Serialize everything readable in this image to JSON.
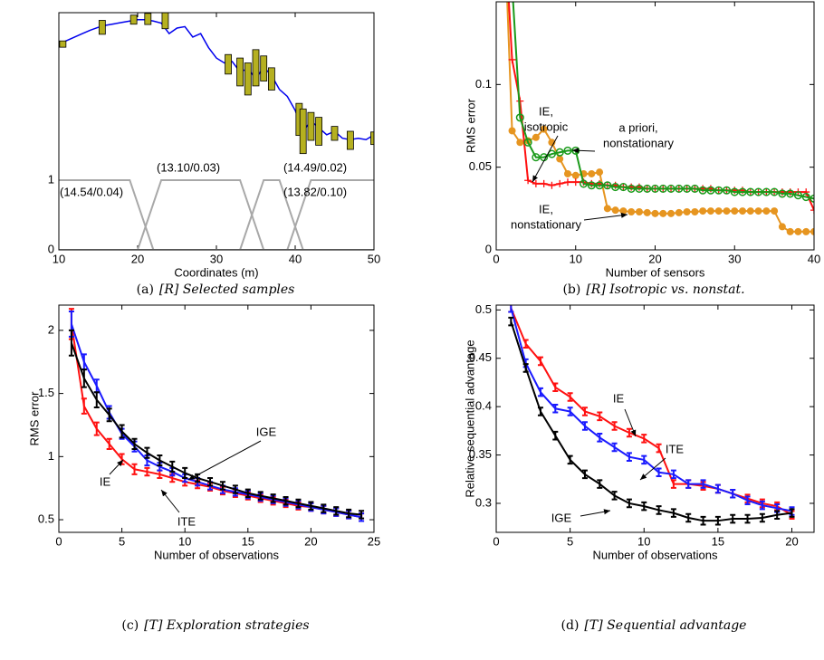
{
  "chart_data": [
    {
      "type": "line",
      "xlabel": "Coordinates (m)",
      "xlim": [
        10,
        50
      ],
      "xticks": [
        10,
        20,
        30,
        40,
        50
      ],
      "ylim": [
        0,
        3.4
      ],
      "yticks": [
        0,
        1
      ],
      "caption": {
        "label": "(a)",
        "text": "[R] Selected samples"
      },
      "annotations": [
        [
          "(14.54/0.04)"
        ],
        [
          "(13.10/0.03)"
        ],
        [
          "(13.82/0.10)"
        ],
        [
          "(14.49/0.02)"
        ]
      ],
      "series": [
        {
          "color": "#a8a8a8",
          "marker": "none",
          "x": [
            10,
            19,
            22,
            50
          ],
          "values": [
            1,
            1,
            0,
            0
          ]
        },
        {
          "color": "#a8a8a8",
          "marker": "none",
          "x": [
            10,
            20,
            23,
            33,
            36,
            50
          ],
          "values": [
            0,
            0,
            1,
            1,
            0,
            0
          ]
        },
        {
          "color": "#a8a8a8",
          "marker": "none",
          "x": [
            10,
            33,
            36,
            38,
            41,
            50
          ],
          "values": [
            0,
            0,
            1,
            1,
            0,
            0
          ]
        },
        {
          "color": "#a8a8a8",
          "marker": "none",
          "x": [
            10,
            39,
            42,
            50
          ],
          "values": [
            0,
            0,
            1,
            1
          ]
        },
        {
          "color": "#0000ee",
          "marker": "none",
          "x": [
            10,
            11,
            12,
            13,
            14,
            15,
            16,
            17,
            18,
            19,
            20,
            21,
            22,
            23,
            24,
            25,
            26,
            27,
            28,
            29,
            30,
            31,
            32,
            33,
            34,
            35,
            36,
            37,
            38,
            39,
            40,
            41,
            42,
            43,
            44,
            45,
            46,
            47,
            48,
            49,
            50
          ],
          "values": [
            2.95,
            3.0,
            3.05,
            3.1,
            3.15,
            3.19,
            3.22,
            3.24,
            3.26,
            3.28,
            3.3,
            3.3,
            3.28,
            3.25,
            3.1,
            3.18,
            3.2,
            3.05,
            3.1,
            2.9,
            2.75,
            2.68,
            2.7,
            2.55,
            2.6,
            2.45,
            2.62,
            2.5,
            2.3,
            2.2,
            2.0,
            1.7,
            1.85,
            1.75,
            1.65,
            1.7,
            1.6,
            1.58,
            1.6,
            1.58,
            1.65
          ]
        },
        {
          "color": "#b5b020",
          "marker": "box",
          "x": [
            10.5,
            15.5,
            19.5,
            21.3,
            23.5,
            31.5,
            33,
            34,
            35,
            36,
            37,
            40.5,
            41,
            42,
            43,
            45,
            47,
            50
          ],
          "values": [
            2.95,
            3.19,
            3.3,
            3.31,
            3.29,
            2.66,
            2.55,
            2.45,
            2.61,
            2.6,
            2.45,
            1.87,
            1.7,
            1.77,
            1.7,
            1.67,
            1.57,
            1.6
          ],
          "errors": [
            0.045,
            0.1,
            0.065,
            0.08,
            0.12,
            0.14,
            0.2,
            0.23,
            0.26,
            0.18,
            0.16,
            0.23,
            0.32,
            0.2,
            0.2,
            0.1,
            0.13,
            0.09
          ]
        }
      ]
    },
    {
      "type": "line",
      "xlabel": "Number of sensors",
      "ylabel": "RMS error",
      "xlim": [
        0,
        40
      ],
      "xticks": [
        0,
        10,
        20,
        30,
        40
      ],
      "ylim": [
        0,
        0.15
      ],
      "yticks": [
        0,
        0.05,
        0.1
      ],
      "caption": {
        "label": "(b)",
        "text": "[R] Isotropic vs. nonstat."
      },
      "annotations": [
        [
          "IE,",
          "isotropic"
        ],
        [
          "a priori,",
          "nonstationary"
        ],
        [
          "IE,",
          "nonstationary"
        ]
      ],
      "x": [
        1,
        2,
        3,
        4,
        5,
        6,
        7,
        8,
        9,
        10,
        11,
        12,
        13,
        14,
        15,
        16,
        17,
        18,
        19,
        20,
        21,
        22,
        23,
        24,
        25,
        26,
        27,
        28,
        29,
        30,
        31,
        32,
        33,
        34,
        35,
        36,
        37,
        38,
        39,
        40
      ],
      "series": [
        {
          "color": "#e69520",
          "marker": "dot",
          "values": [
            0.2,
            0.072,
            0.065,
            0.066,
            0.068,
            0.073,
            0.065,
            0.055,
            0.046,
            0.045,
            0.046,
            0.046,
            0.047,
            0.025,
            0.024,
            0.0235,
            0.023,
            0.023,
            0.0225,
            0.022,
            0.022,
            0.022,
            0.0225,
            0.023,
            0.023,
            0.0235,
            0.0235,
            0.0235,
            0.0235,
            0.0235,
            0.0235,
            0.0235,
            0.0235,
            0.0235,
            0.0235,
            0.014,
            0.011,
            0.011,
            0.011,
            0.011
          ]
        },
        {
          "color": "#ff1010",
          "marker": "plus",
          "values": [
            0.2,
            0.115,
            0.09,
            0.042,
            0.04,
            0.04,
            0.039,
            0.04,
            0.041,
            0.041,
            0.041,
            0.04,
            0.04,
            0.039,
            0.039,
            0.038,
            0.038,
            0.038,
            0.037,
            0.037,
            0.037,
            0.037,
            0.037,
            0.037,
            0.037,
            0.037,
            0.037,
            0.036,
            0.036,
            0.036,
            0.036,
            0.035,
            0.035,
            0.035,
            0.035,
            0.035,
            0.035,
            0.035,
            0.035,
            0.024
          ]
        },
        {
          "color": "#1a9a1a",
          "marker": "circle",
          "values": [
            0.2,
            0.16,
            0.08,
            0.065,
            0.056,
            0.056,
            0.058,
            0.059,
            0.06,
            0.06,
            0.04,
            0.039,
            0.039,
            0.039,
            0.038,
            0.038,
            0.037,
            0.037,
            0.037,
            0.037,
            0.037,
            0.037,
            0.037,
            0.037,
            0.037,
            0.036,
            0.036,
            0.036,
            0.036,
            0.035,
            0.035,
            0.035,
            0.035,
            0.035,
            0.035,
            0.034,
            0.034,
            0.033,
            0.032,
            0.031
          ]
        }
      ]
    },
    {
      "type": "line",
      "xlabel": "Number of observations",
      "ylabel": "RMS error",
      "xlim": [
        0,
        25
      ],
      "xticks": [
        0,
        5,
        10,
        15,
        20,
        25
      ],
      "ylim": [
        0.4,
        2.2
      ],
      "yticks": [
        0.5,
        1,
        1.5,
        2
      ],
      "caption": {
        "label": "(c)",
        "text": "[T] Exploration strategies"
      },
      "annotations": [
        [
          "IGE"
        ],
        [
          "IE"
        ],
        [
          "ITE"
        ]
      ],
      "x": [
        1,
        2,
        3,
        4,
        5,
        6,
        7,
        8,
        9,
        10,
        11,
        12,
        13,
        14,
        15,
        16,
        17,
        18,
        19,
        20,
        21,
        22,
        23,
        24
      ],
      "series": [
        {
          "color": "#ff1010",
          "marker": "none",
          "values": [
            2.05,
            1.4,
            1.22,
            1.1,
            0.98,
            0.9,
            0.88,
            0.86,
            0.83,
            0.8,
            0.78,
            0.76,
            0.73,
            0.71,
            0.69,
            0.67,
            0.65,
            0.63,
            0.61,
            0.6,
            0.58,
            0.56,
            0.54,
            0.52
          ],
          "errors": [
            0.12,
            0.06,
            0.05,
            0.04,
            0.04,
            0.04,
            0.03,
            0.03,
            0.03,
            0.03,
            0.03,
            0.03,
            0.03,
            0.03,
            0.03,
            0.03,
            0.03,
            0.03,
            0.03,
            0.03,
            0.03,
            0.03,
            0.03,
            0.03
          ]
        },
        {
          "color": "#1a1aff",
          "marker": "none",
          "values": [
            2.05,
            1.75,
            1.56,
            1.35,
            1.18,
            1.08,
            0.97,
            0.92,
            0.88,
            0.83,
            0.8,
            0.77,
            0.74,
            0.72,
            0.7,
            0.68,
            0.66,
            0.64,
            0.62,
            0.6,
            0.58,
            0.56,
            0.54,
            0.52
          ],
          "errors": [
            0.1,
            0.06,
            0.05,
            0.05,
            0.04,
            0.04,
            0.04,
            0.03,
            0.03,
            0.03,
            0.03,
            0.03,
            0.03,
            0.03,
            0.03,
            0.03,
            0.03,
            0.03,
            0.03,
            0.03,
            0.03,
            0.03,
            0.03,
            0.03
          ]
        },
        {
          "color": "#000000",
          "marker": "none",
          "values": [
            1.9,
            1.62,
            1.45,
            1.33,
            1.2,
            1.1,
            1.03,
            0.97,
            0.92,
            0.87,
            0.83,
            0.8,
            0.77,
            0.74,
            0.71,
            0.69,
            0.67,
            0.65,
            0.63,
            0.61,
            0.59,
            0.57,
            0.55,
            0.54
          ],
          "errors": [
            0.1,
            0.07,
            0.06,
            0.05,
            0.05,
            0.04,
            0.04,
            0.04,
            0.04,
            0.04,
            0.03,
            0.03,
            0.03,
            0.03,
            0.03,
            0.03,
            0.03,
            0.03,
            0.03,
            0.03,
            0.03,
            0.03,
            0.03,
            0.03
          ]
        }
      ]
    },
    {
      "type": "line",
      "xlabel": "Number of observations",
      "ylabel": "Relative sequential advantage",
      "xlim": [
        0,
        21.5
      ],
      "xticks": [
        0,
        5,
        10,
        15,
        20
      ],
      "ylim": [
        0.27,
        0.505
      ],
      "yticks": [
        0.3,
        0.35,
        0.4,
        0.45,
        0.5
      ],
      "caption": {
        "label": "(d)",
        "text": "[T] Sequential advantage"
      },
      "annotations": [
        [
          "IE"
        ],
        [
          "ITE"
        ],
        [
          "IGE"
        ]
      ],
      "x": [
        1,
        2,
        3,
        4,
        5,
        6,
        7,
        8,
        9,
        10,
        11,
        12,
        13,
        14,
        15,
        16,
        17,
        18,
        19,
        20
      ],
      "series": [
        {
          "color": "#ff1010",
          "marker": "none",
          "values": [
            0.502,
            0.465,
            0.447,
            0.42,
            0.41,
            0.395,
            0.39,
            0.38,
            0.373,
            0.367,
            0.357,
            0.32,
            0.32,
            0.318,
            0.315,
            0.31,
            0.305,
            0.3,
            0.297,
            0.288
          ],
          "errors": [
            0.004,
            0.004,
            0.004,
            0.004,
            0.004,
            0.004,
            0.004,
            0.004,
            0.004,
            0.004,
            0.004,
            0.004,
            0.004,
            0.004,
            0.004,
            0.004,
            0.004,
            0.004,
            0.004,
            0.004
          ]
        },
        {
          "color": "#1a1aff",
          "marker": "none",
          "values": [
            0.502,
            0.445,
            0.415,
            0.398,
            0.395,
            0.38,
            0.368,
            0.358,
            0.348,
            0.345,
            0.332,
            0.33,
            0.32,
            0.32,
            0.315,
            0.31,
            0.303,
            0.298,
            0.295,
            0.292
          ],
          "errors": [
            0.004,
            0.004,
            0.004,
            0.004,
            0.004,
            0.004,
            0.004,
            0.004,
            0.004,
            0.004,
            0.004,
            0.004,
            0.004,
            0.004,
            0.004,
            0.004,
            0.004,
            0.004,
            0.004,
            0.004
          ]
        },
        {
          "color": "#000000",
          "marker": "none",
          "values": [
            0.488,
            0.44,
            0.395,
            0.37,
            0.345,
            0.33,
            0.32,
            0.308,
            0.3,
            0.297,
            0.293,
            0.29,
            0.285,
            0.282,
            0.282,
            0.284,
            0.284,
            0.285,
            0.288,
            0.29
          ],
          "errors": [
            0.004,
            0.004,
            0.004,
            0.004,
            0.004,
            0.004,
            0.004,
            0.004,
            0.004,
            0.004,
            0.004,
            0.004,
            0.004,
            0.004,
            0.004,
            0.004,
            0.004,
            0.004,
            0.004,
            0.004
          ]
        }
      ]
    }
  ]
}
